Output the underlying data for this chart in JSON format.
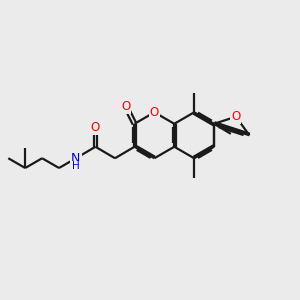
{
  "bg_color": "#ebebeb",
  "bond_color": "#1a1a1a",
  "oxygen_color": "#ff0000",
  "nitrogen_color": "#0000cc",
  "lw": 1.6,
  "fs": 8.5,
  "xlim": [
    0,
    10
  ],
  "ylim": [
    0,
    10
  ]
}
